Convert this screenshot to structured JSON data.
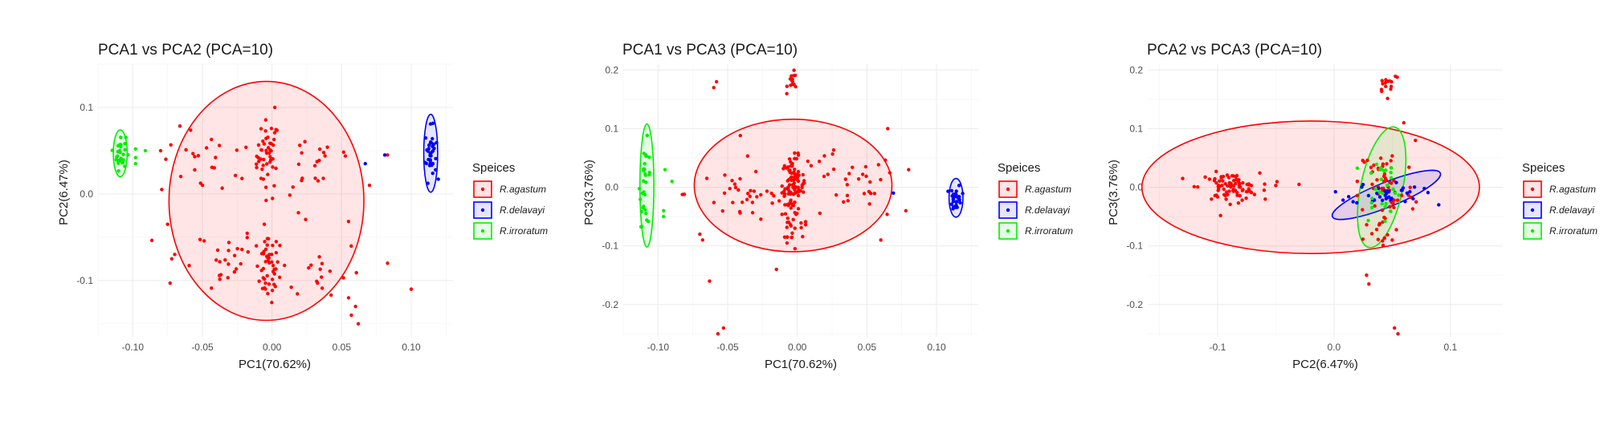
{
  "colors": {
    "R.agastum": "#ff0000",
    "R.delavayi": "#0000ff",
    "R.irroratum": "#00ee00"
  },
  "chart_data": [
    {
      "type": "scatter",
      "title": "PCA1 vs PCA2 (PCA=10)",
      "xlabel": "PC1(70.62%)",
      "ylabel": "PC2(6.47%)",
      "xlim": [
        -0.125,
        0.13
      ],
      "ylim": [
        -0.165,
        0.15
      ],
      "xticks": [
        -0.1,
        -0.05,
        0.0,
        0.05,
        0.1
      ],
      "xtick_labels": [
        "-0.10",
        "-0.05",
        "0.00",
        "0.05",
        "0.10"
      ],
      "yticks": [
        -0.1,
        0.0,
        0.1
      ],
      "ytick_labels": [
        "-0.1",
        "0.0",
        "0.1"
      ],
      "legend_title": "Speices",
      "legend_position": "right",
      "series": [
        {
          "name": "R.agastum",
          "clusters": [
            {
              "cx": -0.003,
              "cy": 0.045,
              "sx": 0.004,
              "sy": 0.02,
              "n": 45
            },
            {
              "cx": -0.003,
              "cy": -0.085,
              "sx": 0.004,
              "sy": 0.02,
              "n": 45
            },
            {
              "cx": -0.045,
              "cy": 0.035,
              "sx": 0.018,
              "sy": 0.02,
              "n": 25
            },
            {
              "cx": -0.045,
              "cy": -0.075,
              "sx": 0.018,
              "sy": 0.02,
              "n": 25
            },
            {
              "cx": 0.035,
              "cy": 0.04,
              "sx": 0.015,
              "sy": 0.02,
              "n": 18
            },
            {
              "cx": 0.035,
              "cy": -0.09,
              "sx": 0.015,
              "sy": 0.02,
              "n": 18
            },
            {
              "cx": 0.01,
              "cy": -0.02,
              "sx": 0.02,
              "sy": 0.03,
              "n": 10
            }
          ],
          "points": [
            [
              0.055,
              -0.12
            ],
            [
              0.057,
              -0.14
            ],
            [
              0.06,
              -0.13
            ],
            [
              0.062,
              -0.15
            ],
            [
              0.083,
              -0.08
            ],
            [
              0.1,
              -0.11
            ],
            [
              0.083,
              0.045
            ],
            [
              0.07,
              0.01
            ],
            [
              0.002,
              0.1
            ],
            [
              -0.075,
              -0.035
            ],
            [
              -0.072,
              -0.075
            ],
            [
              -0.08,
              0.05
            ]
          ],
          "ellipse": {
            "cx": -0.004,
            "cy": -0.008,
            "rx": 0.07,
            "ry": 0.138,
            "angle": 0
          }
        },
        {
          "name": "R.delavayi",
          "clusters": [
            {
              "cx": 0.114,
              "cy": 0.047,
              "sx": 0.002,
              "sy": 0.015,
              "n": 35
            }
          ],
          "points": [
            [
              0.067,
              0.035
            ],
            [
              0.081,
              0.045
            ]
          ],
          "ellipse": {
            "cx": 0.114,
            "cy": 0.047,
            "rx": 0.005,
            "ry": 0.045,
            "angle": 0
          }
        },
        {
          "name": "R.irroratum",
          "clusters": [
            {
              "cx": -0.109,
              "cy": 0.048,
              "sx": 0.002,
              "sy": 0.01,
              "n": 30
            }
          ],
          "points": [
            [
              -0.098,
              0.052
            ],
            [
              -0.098,
              0.042
            ],
            [
              -0.098,
              0.035
            ],
            [
              -0.091,
              0.05
            ]
          ],
          "ellipse": {
            "cx": -0.109,
            "cy": 0.047,
            "rx": 0.005,
            "ry": 0.027,
            "angle": 0
          }
        }
      ]
    },
    {
      "type": "scatter",
      "title": "PCA1 vs PCA3 (PCA=10)",
      "xlabel": "PC1(70.62%)",
      "ylabel": "PC3(3.76%)",
      "xlim": [
        -0.125,
        0.13
      ],
      "ylim": [
        -0.255,
        0.21
      ],
      "xticks": [
        -0.1,
        -0.05,
        0.0,
        0.05,
        0.1
      ],
      "xtick_labels": [
        "-0.10",
        "-0.05",
        "0.00",
        "0.05",
        "0.10"
      ],
      "yticks": [
        -0.2,
        -0.1,
        0.0,
        0.1,
        0.2
      ],
      "ytick_labels": [
        "-0.2",
        "-0.1",
        "0.0",
        "0.1",
        "0.2"
      ],
      "legend_title": "Speices",
      "legend_position": "right",
      "series": [
        {
          "name": "R.agastum",
          "clusters": [
            {
              "cx": -0.003,
              "cy": 0.0,
              "sx": 0.004,
              "sy": 0.025,
              "n": 90
            },
            {
              "cx": -0.03,
              "cy": -0.01,
              "sx": 0.025,
              "sy": 0.03,
              "n": 45
            },
            {
              "cx": 0.035,
              "cy": 0.0,
              "sx": 0.02,
              "sy": 0.03,
              "n": 35
            },
            {
              "cx": -0.003,
              "cy": -0.08,
              "sx": 0.006,
              "sy": 0.015,
              "n": 15
            },
            {
              "cx": -0.003,
              "cy": 0.18,
              "sx": 0.002,
              "sy": 0.008,
              "n": 14
            }
          ],
          "points": [
            [
              -0.06,
              0.17
            ],
            [
              -0.058,
              0.18
            ],
            [
              -0.053,
              -0.24
            ],
            [
              -0.057,
              -0.25
            ],
            [
              -0.063,
              -0.16
            ],
            [
              -0.07,
              -0.08
            ],
            [
              -0.068,
              -0.09
            ],
            [
              0.065,
              0.1
            ],
            [
              0.08,
              0.03
            ],
            [
              0.078,
              -0.04
            ],
            [
              -0.015,
              -0.14
            ],
            [
              0.06,
              -0.09
            ]
          ],
          "ellipse": {
            "cx": -0.003,
            "cy": 0.003,
            "rx": 0.071,
            "ry": 0.113,
            "angle": 0
          }
        },
        {
          "name": "R.delavayi",
          "clusters": [
            {
              "cx": 0.114,
              "cy": -0.018,
              "sx": 0.002,
              "sy": 0.011,
              "n": 30
            }
          ],
          "points": [
            [
              0.069,
              -0.01
            ]
          ],
          "ellipse": {
            "cx": 0.114,
            "cy": -0.018,
            "rx": 0.005,
            "ry": 0.033,
            "angle": 0
          }
        },
        {
          "name": "R.irroratum",
          "clusters": [
            {
              "cx": -0.109,
              "cy": 0.005,
              "sx": 0.002,
              "sy": 0.035,
              "n": 30
            }
          ],
          "points": [
            [
              -0.095,
              0.03
            ],
            [
              -0.09,
              0.01
            ],
            [
              -0.096,
              -0.04
            ],
            [
              -0.096,
              -0.05
            ]
          ],
          "ellipse": {
            "cx": -0.108,
            "cy": 0.003,
            "rx": 0.005,
            "ry": 0.105,
            "angle": 0
          }
        }
      ]
    },
    {
      "type": "scatter",
      "title": "PCA2 vs PCA3 (PCA=10)",
      "xlabel": "PC2(6.47%)",
      "ylabel": "PC3(3.76%)",
      "xlim": [
        -0.16,
        0.145
      ],
      "ylim": [
        -0.255,
        0.21
      ],
      "xticks": [
        -0.1,
        0.0,
        0.1
      ],
      "xtick_labels": [
        "-0.1",
        "0.0",
        "0.1"
      ],
      "yticks": [
        -0.2,
        -0.1,
        0.0,
        0.1,
        0.2
      ],
      "ytick_labels": [
        "-0.2",
        "-0.1",
        "0.0",
        "0.1",
        "0.2"
      ],
      "legend_title": "Speices",
      "legend_position": "right",
      "series": [
        {
          "name": "R.agastum",
          "clusters": [
            {
              "cx": -0.09,
              "cy": 0.0,
              "sx": 0.013,
              "sy": 0.012,
              "n": 85
            },
            {
              "cx": 0.045,
              "cy": 0.0,
              "sx": 0.012,
              "sy": 0.04,
              "n": 60
            },
            {
              "cx": 0.047,
              "cy": 0.18,
              "sx": 0.005,
              "sy": 0.01,
              "n": 15
            },
            {
              "cx": 0.04,
              "cy": -0.09,
              "sx": 0.008,
              "sy": 0.015,
              "n": 12
            }
          ],
          "points": [
            [
              -0.13,
              0.015
            ],
            [
              -0.05,
              0.003
            ],
            [
              -0.06,
              -0.005
            ],
            [
              -0.03,
              0.005
            ],
            [
              0.02,
              0.01
            ],
            [
              0.052,
              -0.24
            ],
            [
              0.055,
              -0.25
            ],
            [
              0.028,
              -0.15
            ],
            [
              0.03,
              -0.165
            ],
            [
              0.06,
              0.11
            ],
            [
              0.07,
              0.08
            ]
          ],
          "ellipse": {
            "cx": -0.02,
            "cy": 0.0,
            "rx": 0.145,
            "ry": 0.113,
            "angle": 0
          }
        },
        {
          "name": "R.delavayi",
          "clusters": [
            {
              "cx": 0.045,
              "cy": -0.01,
              "sx": 0.015,
              "sy": 0.01,
              "n": 35
            }
          ],
          "points": [
            [
              0.09,
              -0.03
            ]
          ],
          "ellipse": {
            "cx": 0.045,
            "cy": -0.013,
            "rx": 0.05,
            "ry": 0.021,
            "angle": 22
          }
        },
        {
          "name": "R.irroratum",
          "clusters": [
            {
              "cx": 0.041,
              "cy": 0.0,
              "sx": 0.008,
              "sy": 0.03,
              "n": 30
            }
          ],
          "points": [],
          "ellipse": {
            "cx": 0.041,
            "cy": 0.0,
            "rx": 0.018,
            "ry": 0.105,
            "angle": -12
          }
        }
      ]
    }
  ]
}
